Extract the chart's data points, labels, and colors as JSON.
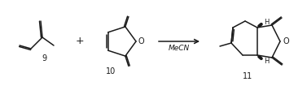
{
  "bg_color": "#ffffff",
  "line_color": "#1a1a1a",
  "line_width": 1.1,
  "label_9": "9",
  "label_10": "10",
  "label_11": "11",
  "arrow_label": "MeCN",
  "figsize": [
    3.77,
    1.06
  ],
  "dpi": 100
}
